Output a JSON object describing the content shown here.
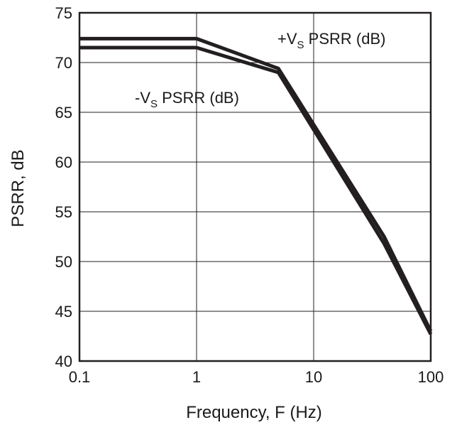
{
  "chart_data": {
    "type": "line",
    "xlabel": "Frequency, F (Hz)",
    "ylabel": "PSRR, dB",
    "xscale": "log",
    "xlim": [
      0.1,
      100
    ],
    "ylim": [
      40,
      75
    ],
    "xticks": [
      0.1,
      1,
      10,
      100
    ],
    "xtick_labels": [
      "0.1",
      "1",
      "10",
      "100"
    ],
    "yticks": [
      40,
      45,
      50,
      55,
      60,
      65,
      70,
      75
    ],
    "ytick_labels": [
      "40",
      "45",
      "50",
      "55",
      "60",
      "65",
      "70",
      "75"
    ],
    "grid": true,
    "line_color": "#231f20",
    "series": [
      {
        "name": "+VS PSRR (dB)",
        "label_prefix": "+V",
        "label_sub": "S",
        "label_suffix": " PSRR (dB)",
        "x": [
          0.1,
          1,
          5,
          40,
          100
        ],
        "y": [
          72.4,
          72.4,
          69.4,
          52.5,
          43
        ]
      },
      {
        "name": "-VS PSRR (dB)",
        "label_prefix": "-V",
        "label_sub": "S",
        "label_suffix": " PSRR (dB)",
        "x": [
          0.1,
          1,
          5,
          40,
          100
        ],
        "y": [
          71.5,
          71.5,
          69,
          51.8,
          42.7
        ]
      }
    ]
  }
}
